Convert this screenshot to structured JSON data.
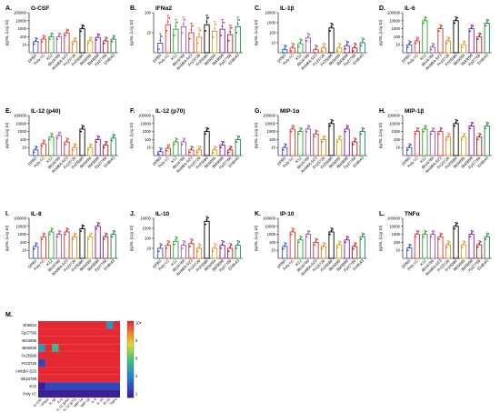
{
  "figure": {
    "cytokines": [
      "G-CSF",
      "IFNα2",
      "IL-1β",
      "IL-6",
      "IL-12 (p40)",
      "IL-12 (p70)",
      "MIP-1α",
      "MIP-1β",
      "IL-8",
      "IL-10",
      "IP-10",
      "TNFα"
    ],
    "panel_letters": [
      "A.",
      "B.",
      "C.",
      "D.",
      "E.",
      "F.",
      "G.",
      "H.",
      "I.",
      "J.",
      "K.",
      "L.",
      "M."
    ],
    "ylabel": "pg/mL (Log 10)",
    "yticks": [
      "10",
      "100",
      "1000",
      "10000",
      "100000"
    ],
    "stimuli": [
      "DPBS",
      "Poly I:C",
      "K12",
      "Bb16789",
      "AmbBA-S23",
      "Fn23726",
      "Fn25586",
      "Bt09285",
      "Bt43898",
      "Fp27766",
      "Eh8043"
    ],
    "stimulus_colors": [
      "#3b4cc0",
      "#e8322e",
      "#2ca02c",
      "#9b59b6",
      "#c0392b",
      "#e67e22",
      "#000000",
      "#d4a017",
      "#7b1fa2",
      "#b71c1c",
      "#1e8449"
    ]
  },
  "chart_data": [
    {
      "type": "bar",
      "title": "G-CSF",
      "panel": "A.",
      "categories": [
        "DPBS",
        "Poly I:C",
        "K12",
        "Bb16789",
        "AmbBA-S23",
        "Fn23726",
        "Fn25586",
        "Bt09285",
        "Bt43898",
        "Fp27766",
        "Eh8043"
      ],
      "values": [
        25,
        50,
        100,
        100,
        300,
        25,
        1000,
        30,
        80,
        30,
        50
      ],
      "ylabel": "pg/mL (Log 10)",
      "ylim": [
        1,
        100000
      ],
      "yscale": "log"
    },
    {
      "type": "bar",
      "title": "IFNα2",
      "panel": "B.",
      "categories": [
        "DPBS",
        "Poly I:C",
        "K12",
        "Bb16789",
        "AmbBA-S23",
        "Fn23726",
        "Fn25586",
        "Bt09285",
        "Bt43898",
        "Fp27766",
        "Eh8043"
      ],
      "values": [
        3,
        25,
        15,
        20,
        10,
        6,
        25,
        12,
        15,
        8,
        20
      ],
      "ylabel": "pg/mL (Log 10)",
      "ylim": [
        1,
        100
      ],
      "yscale": "log"
    },
    {
      "type": "bar",
      "title": "IL-1β",
      "panel": "C.",
      "categories": [
        "DPBS",
        "Poly I:C",
        "K12",
        "Bb16789",
        "AmbBA-S23",
        "Fn23726",
        "Fn25586",
        "Bt09285",
        "Bt43898",
        "Fp27766",
        "Eh8043"
      ],
      "values": [
        2,
        3,
        8,
        30,
        2,
        3,
        300,
        3,
        5,
        3,
        10
      ],
      "ylabel": "pg/mL (Log 10)",
      "ylim": [
        1,
        10000
      ],
      "yscale": "log"
    },
    {
      "type": "bar",
      "title": "IL-6",
      "panel": "D.",
      "categories": [
        "DPBS",
        "Poly I:C",
        "K12",
        "Bb16789",
        "AmbBA-S23",
        "Fn23726",
        "Fn25586",
        "Bt09285",
        "Bt43898",
        "Fp27766",
        "Eh8043"
      ],
      "values": [
        10,
        30,
        10000,
        5,
        1000,
        30,
        10000,
        10,
        1000,
        100,
        5000
      ],
      "ylabel": "pg/mL (Log 10)",
      "ylim": [
        1,
        100000
      ],
      "yscale": "log"
    },
    {
      "type": "bar",
      "title": "IL-12 (p40)",
      "panel": "E.",
      "categories": [
        "DPBS",
        "Poly I:C",
        "K12",
        "Bb16789",
        "AmbBA-S23",
        "Fn23726",
        "Fn25586",
        "Bt09285",
        "Bt43898",
        "Fp27766",
        "Eh8043"
      ],
      "values": [
        5,
        30,
        200,
        300,
        50,
        10,
        2000,
        10,
        100,
        20,
        150
      ],
      "ylabel": "pg/mL (Log 10)",
      "ylim": [
        1,
        100000
      ],
      "yscale": "log"
    },
    {
      "type": "bar",
      "title": "IL-12 (p70)",
      "panel": "F.",
      "categories": [
        "DPBS",
        "Poly I:C",
        "K12",
        "Bb16789",
        "AmbBA-S23",
        "Fn23726",
        "Fn25586",
        "Bt09285",
        "Bt43898",
        "Fp27766",
        "Eh8043"
      ],
      "values": [
        3,
        8,
        50,
        50,
        5,
        5,
        1000,
        5,
        20,
        5,
        100
      ],
      "ylabel": "pg/mL (Log 10)",
      "ylim": [
        1,
        100000
      ],
      "yscale": "log"
    },
    {
      "type": "bar",
      "title": "MIP-1α",
      "panel": "G.",
      "categories": [
        "DPBS",
        "Poly I:C",
        "K12",
        "Bb16789",
        "AmbBA-S23",
        "Fn23726",
        "Fn25586",
        "Bt09285",
        "Bt43898",
        "Fp27766",
        "Eh8043"
      ],
      "values": [
        10,
        2000,
        1000,
        2000,
        500,
        100,
        10000,
        100,
        2000,
        50,
        1000
      ],
      "ylabel": "pg/mL (Log 10)",
      "ylim": [
        1,
        100000
      ],
      "yscale": "log"
    },
    {
      "type": "bar",
      "title": "MIP-1β",
      "panel": "H.",
      "categories": [
        "DPBS",
        "Poly I:C",
        "K12",
        "Bb16789",
        "AmbBA-S23",
        "Fn23726",
        "Fn25586",
        "Bt09285",
        "Bt43898",
        "Fp27766",
        "Eh8043"
      ],
      "values": [
        10,
        1000,
        2000,
        1000,
        1000,
        200,
        10000,
        200,
        5000,
        200,
        5000
      ],
      "ylabel": "pg/mL (Log 10)",
      "ylim": [
        1,
        100000
      ],
      "yscale": "log"
    },
    {
      "type": "bar",
      "title": "IL-8",
      "panel": "I.",
      "categories": [
        "DPBS",
        "Poly I:C",
        "K12",
        "Bb16789",
        "AmbBA-S23",
        "Fn23726",
        "Fn25586",
        "Bt09285",
        "Bt43898",
        "Fp27766",
        "Eh8043"
      ],
      "values": [
        30,
        500,
        2000,
        1000,
        2000,
        500,
        5000,
        500,
        10000,
        500,
        1000
      ],
      "ylabel": "pg/mL (Log 10)",
      "ylim": [
        1,
        100000
      ],
      "yscale": "log"
    },
    {
      "type": "bar",
      "title": "IL-10",
      "panel": "J.",
      "categories": [
        "DPBS",
        "Poly I:C",
        "K12",
        "Bb16789",
        "AmbBA-S23",
        "Fn23726",
        "Fn25586",
        "Bt09285",
        "Bt43898",
        "Fp27766",
        "Eh8043"
      ],
      "values": [
        10,
        20,
        50,
        20,
        30,
        10,
        5000,
        10,
        20,
        10,
        20
      ],
      "ylabel": "pg/mL (Log 10)",
      "ylim": [
        1,
        10000
      ],
      "yscale": "log"
    },
    {
      "type": "bar",
      "title": "IP-10",
      "panel": "K.",
      "categories": [
        "DPBS",
        "Poly I:C",
        "K12",
        "Bb16789",
        "AmbBA-S23",
        "Fn23726",
        "Fn25586",
        "Bt09285",
        "Bt43898",
        "Fp27766",
        "Eh8043"
      ],
      "values": [
        30,
        2000,
        200,
        1000,
        100,
        30,
        2000,
        50,
        200,
        30,
        500
      ],
      "ylabel": "pg/mL (Log 10)",
      "ylim": [
        1,
        100000
      ],
      "yscale": "log"
    },
    {
      "type": "bar",
      "title": "TNFα",
      "panel": "L.",
      "categories": [
        "DPBS",
        "Poly I:C",
        "K12",
        "Bb16789",
        "AmbBA-S23",
        "Fn23726",
        "Fn25586",
        "Bt09285",
        "Bt43898",
        "Fp27766",
        "Eh8043"
      ],
      "values": [
        20,
        1000,
        1000,
        1000,
        500,
        50,
        10000,
        50,
        1000,
        50,
        500
      ],
      "ylabel": "pg/mL (Log 10)",
      "ylim": [
        1,
        100000
      ],
      "yscale": "log"
    },
    {
      "type": "heatmap",
      "panel": "M.",
      "rows": [
        "Eh8043",
        "Fp27766",
        "Bt43898",
        "Bt09285",
        "Fn25586",
        "Fn23726",
        "AmbBA-S23",
        "Bb16789",
        "K12",
        "Poly I:C"
      ],
      "columns": [
        "G-CSF",
        "IFNα2",
        "IL-1β",
        "IL-6",
        "IL-12 (p40)",
        "IL-12 (p70)",
        "MIP-1α",
        "MIP-1β",
        "IL-8",
        "IL-10",
        "IP-10",
        "TNFα"
      ],
      "values": [
        [
          10,
          10,
          10,
          10,
          10,
          10,
          10,
          10,
          10,
          10,
          4,
          10
        ],
        [
          10,
          10,
          10,
          10,
          10,
          10,
          10,
          10,
          10,
          10,
          10,
          10
        ],
        [
          10,
          10,
          10,
          10,
          10,
          10,
          10,
          10,
          10,
          10,
          10,
          10
        ],
        [
          4,
          10,
          5,
          10,
          10,
          10,
          10,
          10,
          10,
          10,
          10,
          10
        ],
        [
          10,
          10,
          10,
          10,
          10,
          10,
          10,
          10,
          10,
          10,
          10,
          10
        ],
        [
          2,
          10,
          10,
          10,
          10,
          10,
          10,
          10,
          10,
          10,
          10,
          10
        ],
        [
          10,
          10,
          10,
          10,
          10,
          10,
          10,
          10,
          10,
          10,
          10,
          10
        ],
        [
          10,
          10,
          10,
          10,
          10,
          10,
          10,
          10,
          10,
          10,
          10,
          10
        ],
        [
          1,
          2,
          2,
          2,
          2,
          2,
          2,
          2,
          2,
          2,
          2,
          2
        ],
        [
          1,
          1,
          1,
          1,
          1,
          1,
          1,
          1,
          1,
          1,
          1,
          1
        ]
      ],
      "colorbar_ticks": [
        "10+",
        "8",
        "6",
        "4",
        "2"
      ],
      "colorbar_range": [
        1,
        10
      ]
    }
  ]
}
